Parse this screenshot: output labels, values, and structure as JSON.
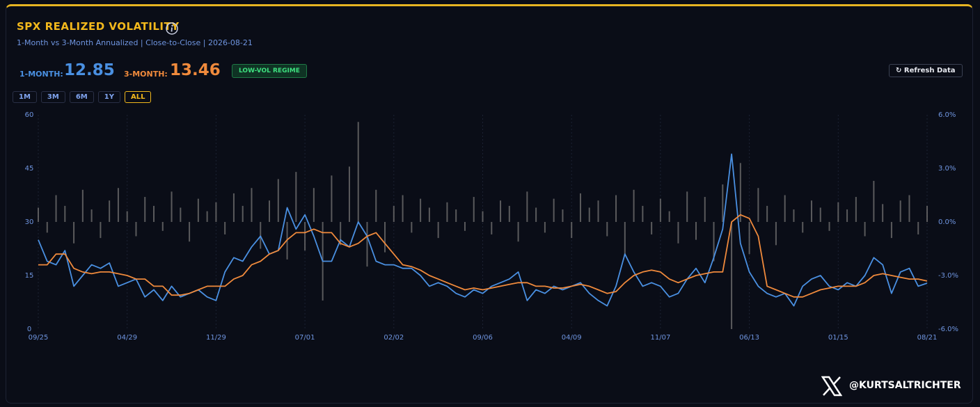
{
  "header": {
    "title": "SPX REALIZED VOLATILITY",
    "subtitle": "1-Month vs 3-Month Annualized | Close-to-Close | 2026-08-21"
  },
  "stats": [
    {
      "label": "1-MONTH:",
      "value": 12.85,
      "color": "#4a90e2"
    },
    {
      "label": "3-MONTH:",
      "value": 13.46,
      "color": "#f08a3c"
    }
  ],
  "badge": "LOW-VOL REGIME",
  "refresh_button": "Refresh Data",
  "range_buttons": [
    "1M",
    "3M",
    "6M",
    "1Y",
    "ALL"
  ],
  "active_range": "ALL",
  "chart_data": {
    "type": "line",
    "categories": [
      "09/25",
      null,
      null,
      null,
      null,
      null,
      null,
      null,
      null,
      null,
      "04/29",
      null,
      null,
      null,
      null,
      null,
      null,
      null,
      null,
      null,
      "11/29",
      null,
      null,
      null,
      null,
      null,
      null,
      null,
      null,
      null,
      "07/01",
      null,
      null,
      null,
      null,
      null,
      null,
      null,
      null,
      null,
      "02/02",
      null,
      null,
      null,
      null,
      null,
      null,
      null,
      null,
      null,
      "09/06",
      null,
      null,
      null,
      null,
      null,
      null,
      null,
      null,
      null,
      "04/09",
      null,
      null,
      null,
      null,
      null,
      null,
      null,
      null,
      null,
      "11/07",
      null,
      null,
      null,
      null,
      null,
      null,
      null,
      null,
      null,
      "06/13",
      null,
      null,
      null,
      null,
      null,
      null,
      null,
      null,
      null,
      "01/15",
      null,
      null,
      null,
      null,
      null,
      null,
      null,
      null,
      null,
      "08/21"
    ],
    "series": [
      {
        "type": "bar",
        "axis": "y2",
        "color": "#6e6e6e",
        "values": [
          0.8,
          -0.6,
          1.5,
          0.9,
          -1.2,
          1.8,
          0.7,
          -0.9,
          1.2,
          1.9,
          0.6,
          -0.8,
          1.4,
          0.9,
          -0.5,
          1.7,
          0.8,
          -1.1,
          1.3,
          0.6,
          1.1,
          -0.7,
          1.6,
          0.9,
          1.9,
          -1.5,
          1.2,
          2.4,
          -2.1,
          2.8,
          -1.6,
          1.9,
          -4.4,
          2.6,
          -1.3,
          3.1,
          5.6,
          -2.5,
          1.8,
          -1.7,
          0.9,
          1.5,
          -0.6,
          1.3,
          0.8,
          -0.9,
          1.1,
          0.7,
          -0.5,
          1.4,
          0.6,
          -0.7,
          1.2,
          0.9,
          -1.1,
          1.7,
          0.8,
          -0.6,
          1.3,
          0.7,
          -0.9,
          1.6,
          0.8,
          1.2,
          -0.8,
          1.5,
          -1.9,
          1.8,
          0.9,
          -0.7,
          1.3,
          0.6,
          -1.2,
          1.7,
          -1.0,
          1.4,
          -2.2,
          2.1,
          -6.0,
          3.3,
          -1.8,
          1.9,
          0.9,
          -1.3,
          1.5,
          0.7,
          -0.6,
          1.2,
          0.8,
          -0.5,
          1.1,
          0.7,
          1.4,
          -0.8,
          2.3,
          1.0,
          -0.9,
          1.2,
          1.5,
          -0.7,
          0.9
        ]
      },
      {
        "type": "line",
        "color": "#4a90e2",
        "values": [
          25,
          19,
          18,
          22,
          12,
          15,
          18,
          17,
          18.5,
          12,
          13,
          14,
          9,
          11,
          8,
          12,
          9,
          10,
          11,
          9,
          8,
          16,
          20,
          19,
          23,
          26,
          21,
          22,
          34,
          28,
          32,
          26,
          19,
          19,
          25,
          23,
          30,
          26,
          19,
          18,
          18,
          17,
          17,
          15,
          12,
          13,
          12,
          10,
          9,
          11,
          10,
          12,
          13,
          14,
          16,
          8,
          11,
          10,
          12,
          11,
          12,
          13,
          10,
          8,
          6.5,
          12,
          21,
          16,
          12,
          13,
          12,
          9,
          10,
          14,
          17,
          13,
          20,
          28,
          49,
          24,
          16,
          12,
          10,
          9,
          10,
          6.5,
          12,
          14,
          15,
          12,
          11,
          13,
          12,
          15,
          20,
          18,
          10,
          16,
          17,
          12,
          12.85
        ]
      },
      {
        "type": "line",
        "color": "#f08a3c",
        "values": [
          18,
          18,
          21,
          21,
          17,
          16,
          15.5,
          16,
          16,
          15.5,
          15,
          14,
          14,
          12,
          12,
          9.5,
          9.5,
          10,
          11,
          12,
          12,
          12,
          14,
          15,
          18,
          19,
          21,
          22,
          25,
          27,
          27,
          28,
          27,
          27,
          24,
          23,
          24,
          26,
          27,
          24,
          21,
          18,
          17.5,
          16.5,
          15,
          14,
          13,
          12,
          11,
          11.5,
          11,
          11.5,
          12,
          12.5,
          13,
          13,
          12,
          12,
          11.5,
          11.5,
          12,
          12.5,
          12,
          11,
          10,
          10.5,
          13,
          15,
          16,
          16.5,
          16,
          14,
          13,
          14,
          15,
          15.5,
          16,
          16,
          30,
          32,
          31,
          26,
          12,
          11,
          10,
          9,
          9,
          10,
          11,
          11.5,
          12,
          12,
          12,
          13,
          15,
          15.5,
          15,
          14.5,
          14,
          14,
          13.46
        ]
      }
    ],
    "ylim": [
      0,
      60
    ],
    "yticks": [
      0,
      15,
      30,
      45,
      60
    ],
    "y2lim": [
      -6,
      6
    ],
    "y2ticks": [
      {
        "value": 6,
        "label": "6.0%"
      },
      {
        "value": 3,
        "label": "3.0%"
      },
      {
        "value": 0,
        "label": "0.0%"
      },
      {
        "value": -3,
        "label": "-3.0%"
      },
      {
        "value": -6,
        "label": "-6.0%"
      }
    ],
    "grid": true
  },
  "footer": {
    "handle": "@KURTSALTRICHTER"
  }
}
